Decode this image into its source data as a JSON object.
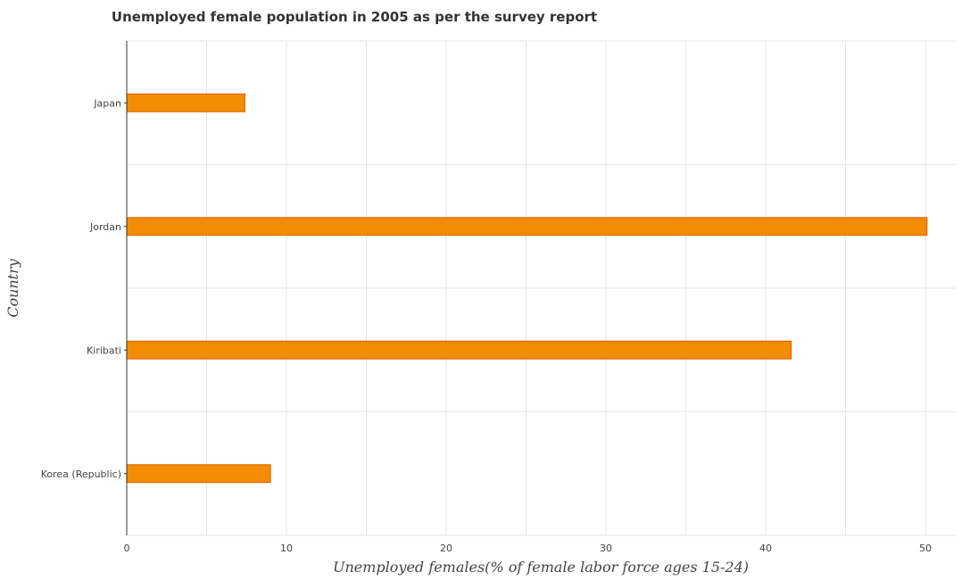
{
  "chart_data": {
    "type": "bar",
    "orientation": "horizontal",
    "title": "Unemployed female population in 2005 as per the survey report",
    "xlabel": "Unemployed females(% of female labor force ages 15-24)",
    "ylabel": "Country",
    "categories": [
      "Japan",
      "Jordan",
      "Kiribati",
      "Korea (Republic)"
    ],
    "values": [
      7.4,
      50.1,
      41.6,
      9.0
    ],
    "xlim": [
      0,
      52
    ],
    "xticks": [
      0,
      10,
      20,
      30,
      40,
      50
    ],
    "xtick_labels": [
      "0",
      "10",
      "20",
      "30",
      "40",
      "50"
    ],
    "grid": true,
    "bar_color": "#f28c00",
    "bar_edge_color": "#e06000"
  }
}
